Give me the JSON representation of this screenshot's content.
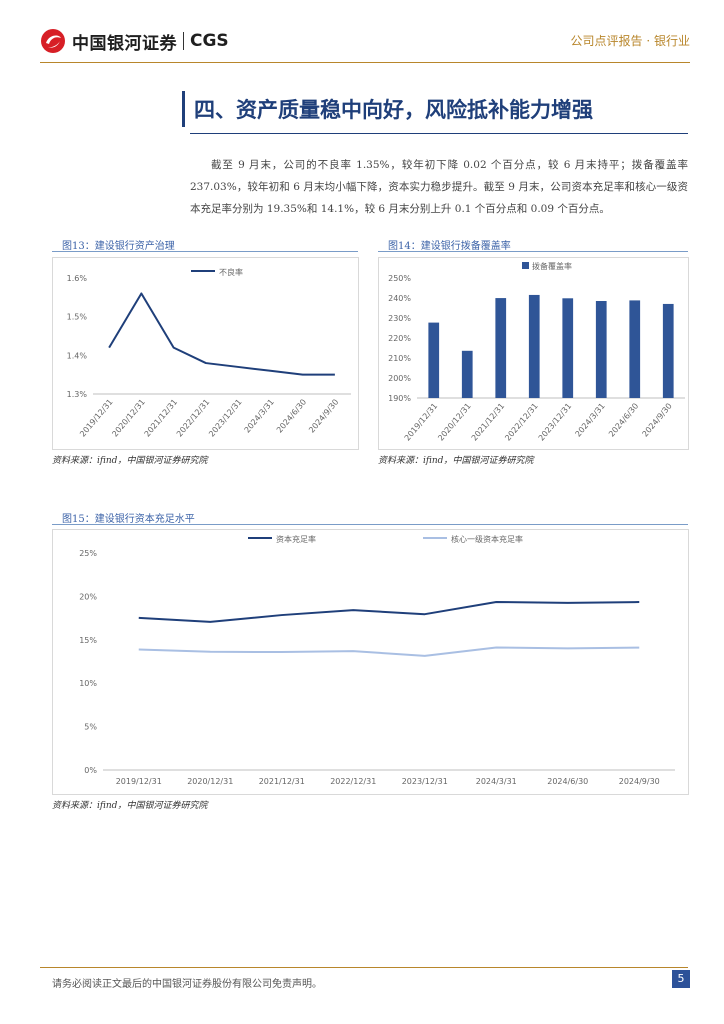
{
  "header": {
    "logo_cn": "中国银河证券",
    "logo_en": "CGS",
    "right": "公司点评报告 · 银行业"
  },
  "section": {
    "title": "四、资产质量稳中向好，风险抵补能力增强",
    "paragraph": "截至 9 月末，公司的不良率 1.35%，较年初下降 0.02 个百分点，较 6 月末持平；拨备覆盖率 237.03%，较年初和 6 月末均小幅下降，资本实力稳步提升。截至 9 月末，公司资本充足率和核心一级资本充足率分别为 19.35%和 14.1%，较 6 月末分别上升 0.1 个百分点和 0.09 个百分点。"
  },
  "figures": {
    "fig13": {
      "title": "图13：建设银行资产治理",
      "source": "资料来源：ifind，中国银河证券研究院"
    },
    "fig14": {
      "title": "图14：建设银行拨备覆盖率",
      "source": "资料来源：ifind，中国银河证券研究院"
    },
    "fig15": {
      "title": "图15：建设银行资本充足水平",
      "source": "资料来源：ifind，中国银河证券研究院"
    }
  },
  "footer": {
    "disclaimer": "请务必阅读正文最后的中国银河证券股份有限公司免责声明。",
    "page": "5"
  },
  "colors": {
    "navy": "#1f3f7a",
    "gold": "#b8862b",
    "bar": "#2f5597",
    "light_line": "#a9bfe3"
  },
  "chart_data": [
    {
      "type": "line",
      "categories": [
        "2019/12/31",
        "2020/12/31",
        "2021/12/31",
        "2022/12/31",
        "2023/12/31",
        "2024/3/31",
        "2024/6/30",
        "2024/9/30"
      ],
      "series": [
        {
          "name": "不良率",
          "values": [
            1.42,
            1.56,
            1.42,
            1.38,
            1.37,
            1.36,
            1.35,
            1.35
          ]
        }
      ],
      "yticks": [
        "1.3%",
        "1.4%",
        "1.5%",
        "1.6%"
      ],
      "ylim": [
        1.3,
        1.6
      ],
      "legend": "top-center",
      "grid": false
    },
    {
      "type": "bar",
      "categories": [
        "2019/12/31",
        "2020/12/31",
        "2021/12/31",
        "2022/12/31",
        "2023/12/31",
        "2024/3/31",
        "2024/6/30",
        "2024/9/30"
      ],
      "series": [
        {
          "name": "拨备覆盖率",
          "values": [
            227.7,
            213.6,
            239.96,
            241.53,
            239.85,
            238.5,
            238.8,
            237.03
          ]
        }
      ],
      "yticks": [
        "190%",
        "200%",
        "210%",
        "220%",
        "230%",
        "240%",
        "250%"
      ],
      "ylim": [
        190,
        250
      ],
      "legend": "top-center",
      "grid": false
    },
    {
      "type": "line",
      "categories": [
        "2019/12/31",
        "2020/12/31",
        "2021/12/31",
        "2022/12/31",
        "2023/12/31",
        "2024/3/31",
        "2024/6/30",
        "2024/9/30"
      ],
      "series": [
        {
          "name": "资本充足率",
          "values": [
            17.52,
            17.06,
            17.85,
            18.42,
            17.95,
            19.36,
            19.25,
            19.35
          ]
        },
        {
          "name": "核心一级资本充足率",
          "values": [
            13.88,
            13.62,
            13.59,
            13.69,
            13.15,
            14.11,
            14.01,
            14.1
          ]
        }
      ],
      "yticks": [
        "0%",
        "5%",
        "10%",
        "15%",
        "20%",
        "25%"
      ],
      "ylim": [
        0,
        25
      ],
      "legend": "top-center",
      "grid": false
    }
  ]
}
